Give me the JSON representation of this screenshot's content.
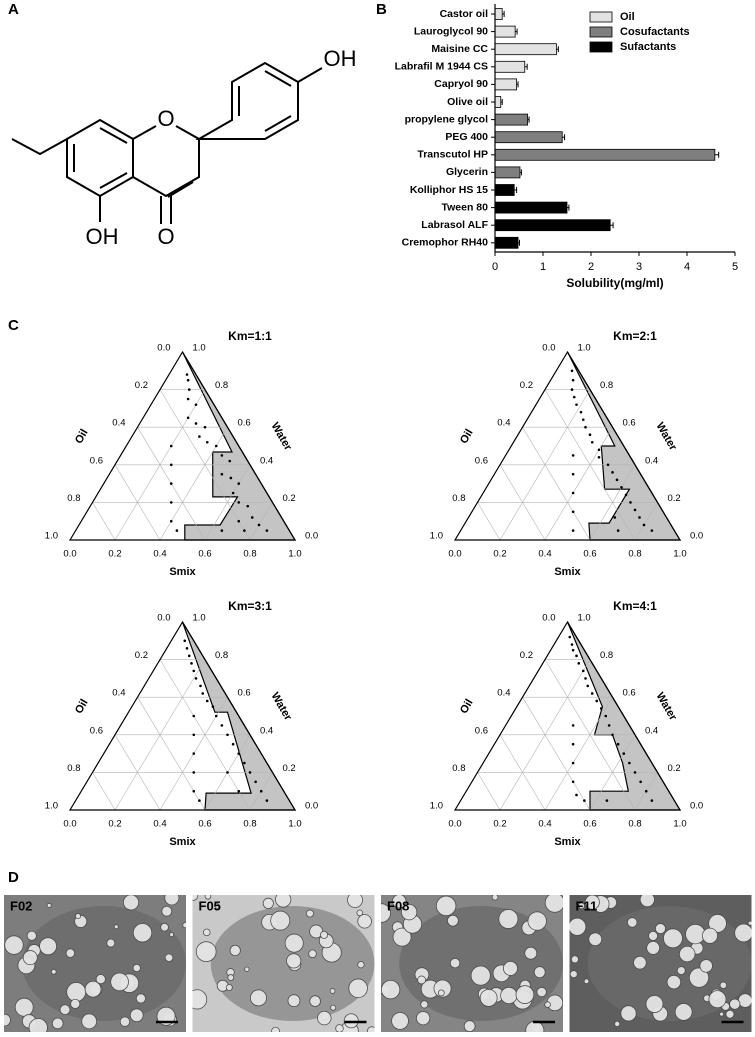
{
  "panel_labels": [
    "A",
    "B",
    "C",
    "D"
  ],
  "structure": {
    "atom_labels": [
      "O",
      "OH",
      "OH",
      "O"
    ]
  },
  "chart_data": [
    {
      "type": "bar",
      "orientation": "horizontal",
      "categories": [
        "Castor oil",
        "Lauroglycol 90",
        "Maisine CC",
        "Labrafil M 1944 CS",
        "Capryol 90",
        "Olive oil",
        "propylene glycol",
        "PEG 400",
        "Transcutol HP",
        "Glycerin",
        "Kolliphor HS 15",
        "Tween 80",
        "Labrasol ALF",
        "Cremophor RH40"
      ],
      "series": [
        {
          "name": "Oil",
          "color": "#e2e2e2",
          "values": [
            0.15,
            0.42,
            1.28,
            0.62,
            0.45,
            0.12,
            null,
            null,
            null,
            null,
            null,
            null,
            null,
            null
          ],
          "errors": [
            0.04,
            0.04,
            0.04,
            0.05,
            0.03,
            0.03,
            null,
            null,
            null,
            null,
            null,
            null,
            null,
            null
          ]
        },
        {
          "name": "Cosufactants",
          "color": "#7f7f7f",
          "values": [
            null,
            null,
            null,
            null,
            null,
            null,
            0.68,
            1.4,
            4.58,
            0.52,
            null,
            null,
            null,
            null
          ],
          "errors": [
            null,
            null,
            null,
            null,
            null,
            null,
            0.03,
            0.05,
            0.08,
            0.03,
            null,
            null,
            null,
            null
          ]
        },
        {
          "name": "Sufactants",
          "color": "#000000",
          "values": [
            null,
            null,
            null,
            null,
            null,
            null,
            null,
            null,
            null,
            null,
            0.4,
            1.5,
            2.4,
            0.48
          ],
          "errors": [
            null,
            null,
            null,
            null,
            null,
            null,
            null,
            null,
            null,
            null,
            0.05,
            0.04,
            0.06,
            0.03
          ]
        }
      ],
      "xlabel": "Solubility(mg/ml)",
      "xlim": [
        0,
        5
      ],
      "xticks": [
        0,
        1,
        2,
        3,
        4,
        5
      ]
    },
    {
      "type": "ternary",
      "title": "Km=1:1",
      "axis_labels": {
        "left": "Oil",
        "right": "Water",
        "bottom": "Smix"
      },
      "ticks": [
        {
          "value": 0,
          "label": "0.0"
        },
        {
          "value": 0.2,
          "label": "0.2"
        },
        {
          "value": 0.4,
          "label": "0.4"
        },
        {
          "value": 0.6,
          "label": "0.6"
        },
        {
          "value": 0.8,
          "label": "0.8"
        },
        {
          "value": 1,
          "label": "1.0"
        }
      ],
      "region_color": "#c4c4c4",
      "region": {
        "smix": [
          0,
          0.486,
          0.4,
          0.52,
          0.63,
          0.627,
          0.47,
          0.51,
          1
        ],
        "water": [
          1,
          0.468,
          0.468,
          0.229,
          0.229,
          0.08,
          0.08,
          0,
          0
        ]
      },
      "points": {
        "smix": [
          0.08,
          0.1,
          0.13,
          0.15,
          0.2,
          0.2,
          0.25,
          0.3,
          0.3,
          0.35,
          0.4,
          0.45,
          0.5,
          0.5,
          0.55,
          0.6,
          0.6,
          0.65,
          0.7,
          0.75,
          0.7,
          0.8,
          0.75,
          0.85,
          0.65,
          0.2,
          0.25,
          0.3,
          0.35,
          0.4,
          0.45
        ],
        "water": [
          0.88,
          0.85,
          0.8,
          0.75,
          0.72,
          0.65,
          0.62,
          0.6,
          0.55,
          0.52,
          0.5,
          0.45,
          0.42,
          0.35,
          0.33,
          0.3,
          0.25,
          0.2,
          0.18,
          0.12,
          0.1,
          0.08,
          0.05,
          0.05,
          0.05,
          0.5,
          0.4,
          0.3,
          0.2,
          0.1,
          0.05
        ]
      }
    },
    {
      "type": "ternary",
      "title": "Km=2:1",
      "axis_labels": {
        "left": "Oil",
        "right": "Water",
        "bottom": "Smix"
      },
      "ticks": [
        {
          "value": 0,
          "label": "0.0"
        },
        {
          "value": 0.2,
          "label": "0.2"
        },
        {
          "value": 0.4,
          "label": "0.4"
        },
        {
          "value": 0.6,
          "label": "0.6"
        },
        {
          "value": 0.8,
          "label": "0.8"
        },
        {
          "value": 1,
          "label": "1.0"
        }
      ],
      "region_color": "#c4c4c4",
      "region": {
        "smix": [
          0,
          0.46,
          0.4,
          0.53,
          0.64,
          0.64,
          0.55,
          0.6,
          1
        ],
        "water": [
          1,
          0.5,
          0.5,
          0.27,
          0.27,
          0.09,
          0.09,
          0,
          0
        ]
      },
      "points": {
        "smix": [
          0.07,
          0.1,
          0.12,
          0.15,
          0.18,
          0.22,
          0.25,
          0.28,
          0.32,
          0.35,
          0.4,
          0.42,
          0.48,
          0.52,
          0.56,
          0.6,
          0.64,
          0.68,
          0.72,
          0.76,
          0.8,
          0.7,
          0.85,
          0.65,
          0.3,
          0.35,
          0.4,
          0.45,
          0.5
        ],
        "water": [
          0.9,
          0.85,
          0.8,
          0.76,
          0.72,
          0.68,
          0.64,
          0.6,
          0.56,
          0.52,
          0.48,
          0.44,
          0.4,
          0.36,
          0.32,
          0.28,
          0.24,
          0.2,
          0.16,
          0.12,
          0.08,
          0.05,
          0.05,
          0.12,
          0.45,
          0.35,
          0.25,
          0.15,
          0.05
        ]
      }
    },
    {
      "type": "ternary",
      "title": "Km=3:1",
      "axis_labels": {
        "left": "Oil",
        "right": "Water",
        "bottom": "Smix"
      },
      "ticks": [
        {
          "value": 0,
          "label": "0.0"
        },
        {
          "value": 0.2,
          "label": "0.2"
        },
        {
          "value": 0.4,
          "label": "0.4"
        },
        {
          "value": 0.6,
          "label": "0.6"
        },
        {
          "value": 0.8,
          "label": "0.8"
        },
        {
          "value": 1,
          "label": "1.0"
        }
      ],
      "region_color": "#c4c4c4",
      "region": {
        "smix": [
          0,
          0.384,
          0.44,
          0.76,
          0.56,
          0.6,
          1
        ],
        "water": [
          1,
          0.52,
          0.52,
          0.09,
          0.09,
          0,
          0
        ]
      },
      "points": {
        "smix": [
          0.06,
          0.09,
          0.12,
          0.15,
          0.18,
          0.21,
          0.25,
          0.28,
          0.32,
          0.36,
          0.4,
          0.45,
          0.5,
          0.55,
          0.6,
          0.65,
          0.7,
          0.75,
          0.8,
          0.7,
          0.6,
          0.85,
          0.3,
          0.35,
          0.4,
          0.45,
          0.5,
          0.55
        ],
        "water": [
          0.9,
          0.86,
          0.82,
          0.78,
          0.74,
          0.7,
          0.66,
          0.62,
          0.58,
          0.55,
          0.5,
          0.45,
          0.4,
          0.35,
          0.3,
          0.25,
          0.2,
          0.15,
          0.1,
          0.1,
          0.2,
          0.05,
          0.5,
          0.4,
          0.3,
          0.2,
          0.1,
          0.05
        ]
      }
    },
    {
      "type": "ternary",
      "title": "Km=4:1",
      "axis_labels": {
        "left": "Oil",
        "right": "Water",
        "bottom": "Smix"
      },
      "ticks": [
        {
          "value": 0,
          "label": "0.0"
        },
        {
          "value": 0.2,
          "label": "0.2"
        },
        {
          "value": 0.4,
          "label": "0.4"
        },
        {
          "value": 0.6,
          "label": "0.6"
        },
        {
          "value": 0.8,
          "label": "0.8"
        },
        {
          "value": 1,
          "label": "1.0"
        }
      ],
      "region_color": "#c4c4c4",
      "region": {
        "smix": [
          0,
          0.38,
          0.42,
          0.5,
          0.62,
          0.72,
          0.55,
          0.6,
          1
        ],
        "water": [
          1,
          0.55,
          0.4,
          0.4,
          0.25,
          0.1,
          0.1,
          0,
          0
        ]
      },
      "points": {
        "smix": [
          0.05,
          0.08,
          0.1,
          0.13,
          0.16,
          0.2,
          0.23,
          0.26,
          0.3,
          0.34,
          0.38,
          0.42,
          0.46,
          0.5,
          0.55,
          0.6,
          0.65,
          0.7,
          0.75,
          0.8,
          0.85,
          0.65,
          0.3,
          0.35,
          0.4,
          0.45,
          0.5,
          0.55
        ],
        "water": [
          0.92,
          0.88,
          0.85,
          0.82,
          0.78,
          0.74,
          0.7,
          0.66,
          0.62,
          0.58,
          0.54,
          0.5,
          0.45,
          0.4,
          0.35,
          0.3,
          0.25,
          0.2,
          0.15,
          0.1,
          0.05,
          0.05,
          0.45,
          0.35,
          0.25,
          0.15,
          0.08,
          0.05
        ]
      }
    }
  ],
  "tem": {
    "labels": [
      "F02",
      "F05",
      "F08",
      "F11"
    ]
  }
}
